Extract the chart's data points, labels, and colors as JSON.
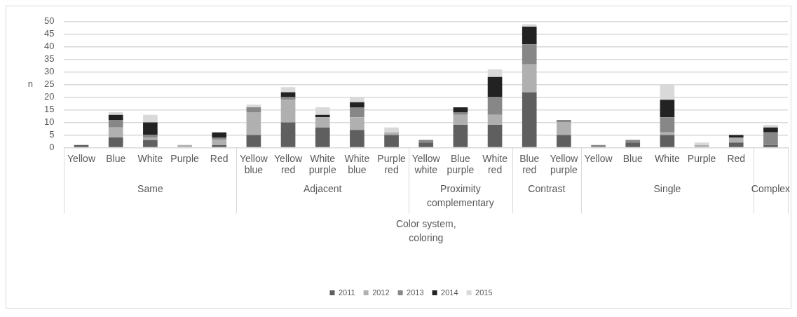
{
  "chart_data": {
    "type": "bar",
    "stacked": true,
    "xlabel": "Color system, coloring",
    "ylabel": "n",
    "categories": [
      "Yellow",
      "Blue",
      "White",
      "Purple",
      "Red",
      "Yellow blue",
      "Yellow red",
      "White purple",
      "White blue",
      "Purple red",
      "Yellow white",
      "Blue purple",
      "White red",
      "Blue red",
      "Yellow purple",
      "Yellow",
      "Blue",
      "White",
      "Purple",
      "Red",
      null
    ],
    "annotations": [
      "Same",
      "Adjacent",
      "Proximity complementary",
      "Contrast",
      "Single",
      "Complex"
    ],
    "series": [
      {
        "name": "2011",
        "color": "#5f5f5f",
        "values": [
          1,
          4,
          3,
          0,
          1,
          5,
          10,
          8,
          7,
          5,
          2,
          9,
          9,
          22,
          5,
          0,
          2,
          5,
          0,
          2,
          1
        ]
      },
      {
        "name": "2012",
        "color": "#b0b0b0",
        "values": [
          0,
          4,
          1,
          1,
          2,
          9,
          9,
          4,
          5,
          1,
          0,
          4,
          4,
          11,
          5,
          0,
          0,
          1,
          1,
          2,
          0
        ]
      },
      {
        "name": "2013",
        "color": "#878787",
        "values": [
          0,
          3,
          1,
          0,
          1,
          2,
          1,
          0,
          4,
          0,
          1,
          1,
          7,
          8,
          1,
          1,
          1,
          6,
          0,
          0,
          5
        ]
      },
      {
        "name": "2014",
        "color": "#222222",
        "values": [
          0,
          2,
          5,
          0,
          2,
          0,
          2,
          1,
          2,
          0,
          0,
          2,
          8,
          7,
          0,
          0,
          0,
          7,
          0,
          1,
          2
        ]
      },
      {
        "name": "2015",
        "color": "#d9d9d9",
        "values": [
          0,
          1,
          3,
          0,
          0,
          1,
          2,
          3,
          2,
          2,
          0,
          0,
          3,
          1,
          0,
          0,
          0,
          6,
          1,
          0,
          1
        ]
      }
    ],
    "ylim": [
      0,
      50
    ],
    "yticks": [
      0,
      5,
      10,
      15,
      20,
      25,
      30,
      35,
      40,
      45,
      50
    ],
    "grid": "y",
    "legend": "bottom"
  }
}
